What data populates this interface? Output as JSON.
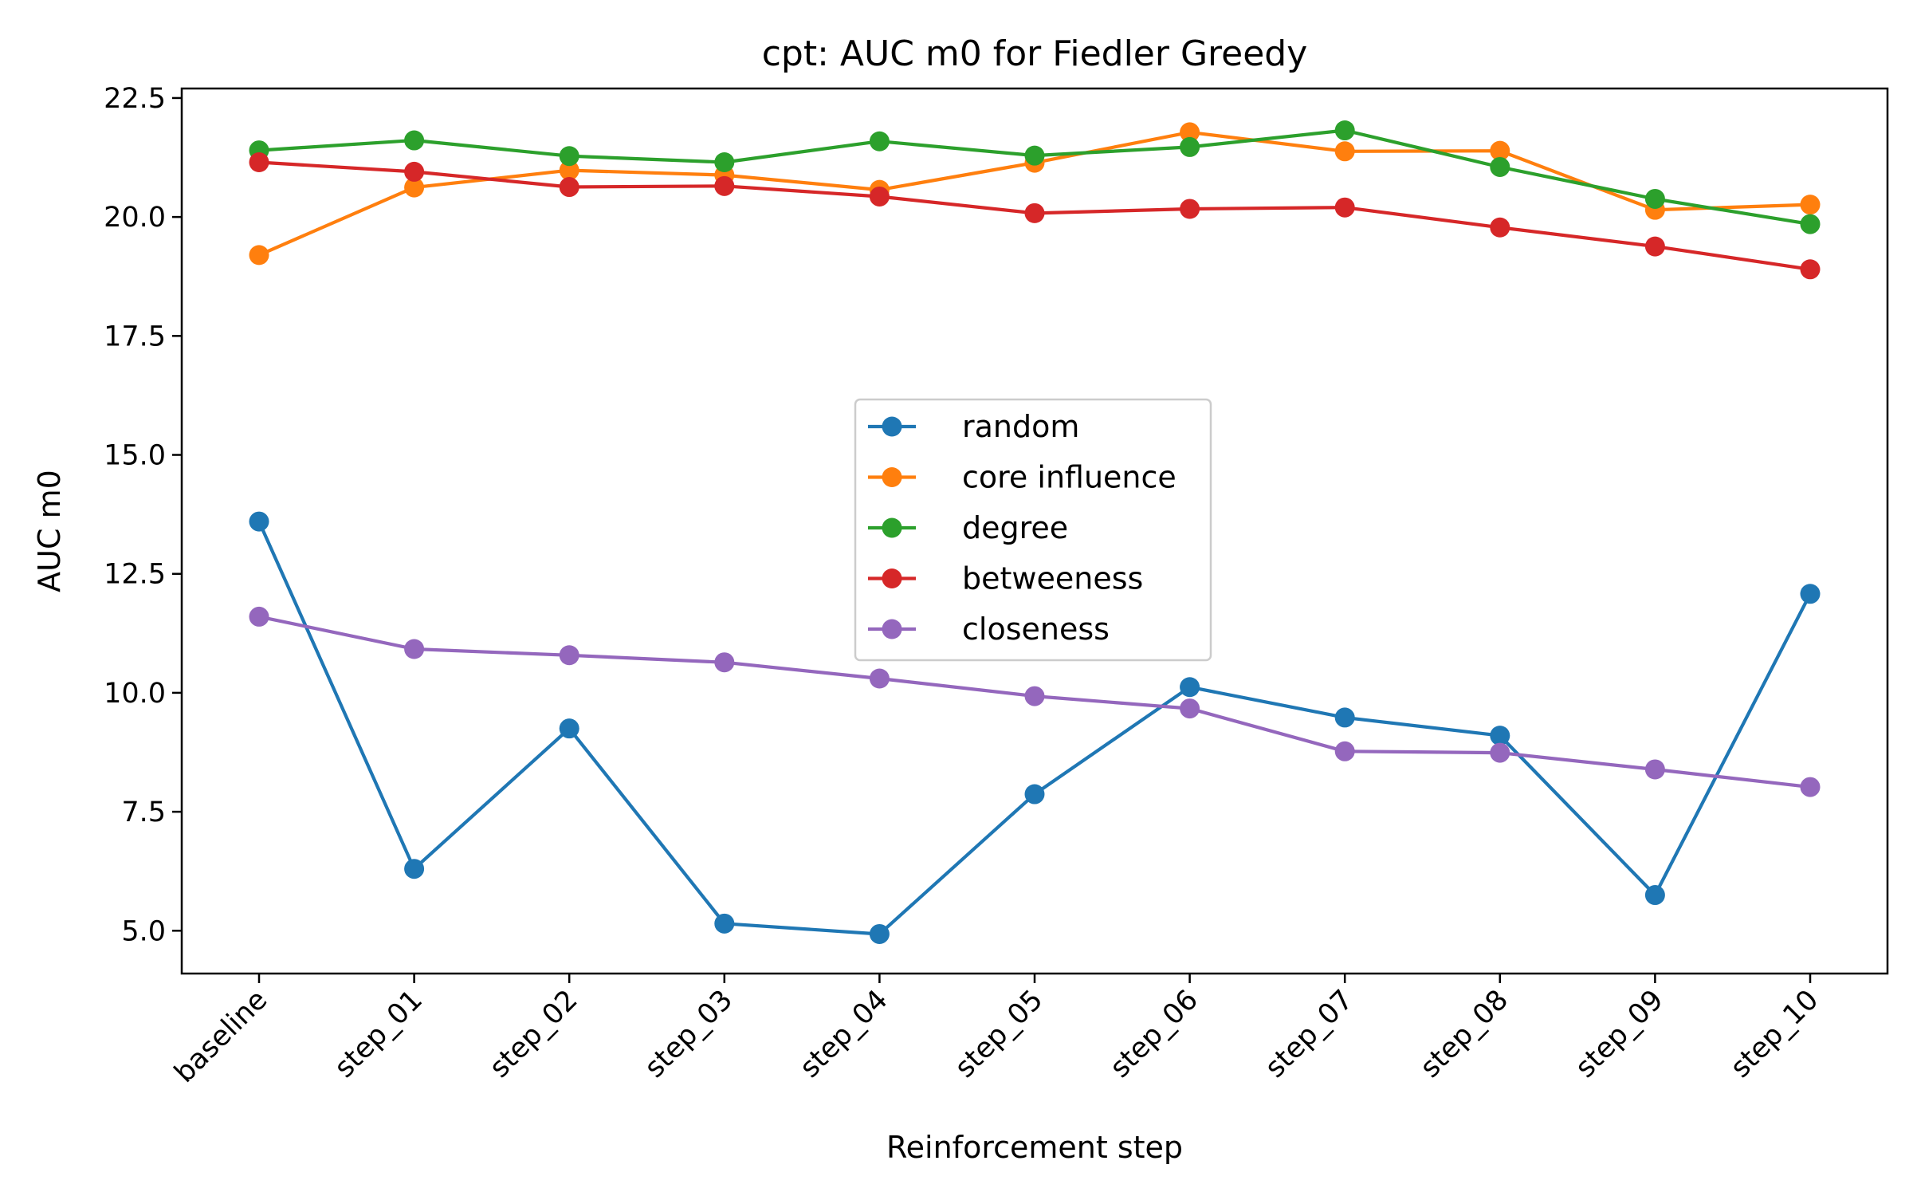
{
  "chart_data": {
    "type": "line",
    "title": "cpt: AUC m0 for Fiedler Greedy",
    "xlabel": "Reinforcement step",
    "ylabel": "AUC m0",
    "categories": [
      "baseline",
      "step_01",
      "step_02",
      "step_03",
      "step_04",
      "step_05",
      "step_06",
      "step_07",
      "step_08",
      "step_09",
      "step_10"
    ],
    "ylim": [
      4.1,
      22.7
    ],
    "yticks": [
      5.0,
      7.5,
      10.0,
      12.5,
      15.0,
      17.5,
      20.0,
      22.5
    ],
    "ytick_labels": [
      "5.0",
      "7.5",
      "10.0",
      "12.5",
      "15.0",
      "17.5",
      "20.0",
      "22.5"
    ],
    "grid": false,
    "legend_position": "center",
    "series": [
      {
        "name": "random",
        "color": "#1f77b4",
        "values": [
          13.6,
          6.3,
          9.25,
          5.15,
          4.93,
          7.87,
          10.12,
          9.48,
          9.1,
          5.75,
          12.08
        ]
      },
      {
        "name": "core influence",
        "color": "#ff7f0e",
        "values": [
          19.2,
          20.62,
          20.98,
          20.88,
          20.57,
          21.14,
          21.78,
          21.38,
          21.39,
          20.15,
          20.26
        ]
      },
      {
        "name": "degree",
        "color": "#2ca02c",
        "values": [
          21.4,
          21.61,
          21.28,
          21.15,
          21.59,
          21.29,
          21.47,
          21.82,
          21.05,
          20.38,
          19.85
        ]
      },
      {
        "name": "betweeness",
        "color": "#d62728",
        "values": [
          21.15,
          20.95,
          20.63,
          20.65,
          20.43,
          20.08,
          20.17,
          20.2,
          19.78,
          19.38,
          18.9
        ]
      },
      {
        "name": "closeness",
        "color": "#9467bd",
        "values": [
          11.6,
          10.92,
          10.79,
          10.64,
          10.3,
          9.93,
          9.67,
          8.77,
          8.74,
          8.39,
          8.02
        ]
      }
    ]
  }
}
